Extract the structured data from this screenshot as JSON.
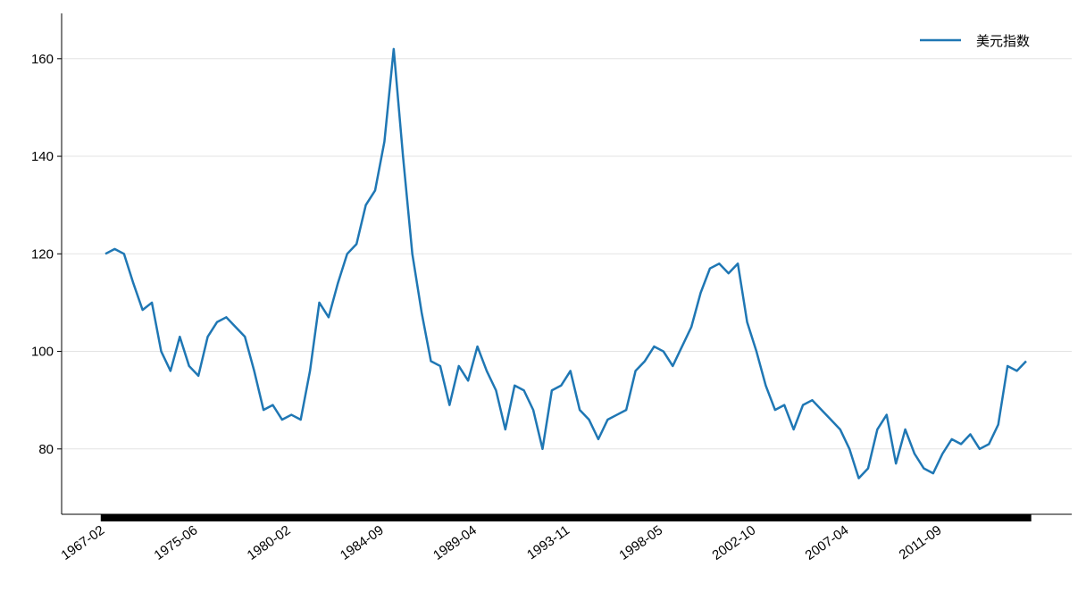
{
  "chart_data": {
    "type": "line",
    "categories": [
      "1967-02",
      null,
      null,
      null,
      null,
      null,
      null,
      null,
      null,
      null,
      "1975-06",
      null,
      null,
      null,
      null,
      null,
      null,
      null,
      null,
      null,
      "1980-02",
      null,
      null,
      null,
      null,
      null,
      null,
      null,
      null,
      null,
      "1984-09",
      null,
      null,
      null,
      null,
      null,
      null,
      null,
      null,
      null,
      "1989-04",
      null,
      null,
      null,
      null,
      null,
      null,
      null,
      null,
      null,
      "1993-11",
      null,
      null,
      null,
      null,
      null,
      null,
      null,
      null,
      null,
      "1998-05",
      null,
      null,
      null,
      null,
      null,
      null,
      null,
      null,
      null,
      "2002-10",
      null,
      null,
      null,
      null,
      null,
      null,
      null,
      null,
      null,
      "2007-04",
      null,
      null,
      null,
      null,
      null,
      null,
      null,
      null,
      null,
      "2011-09",
      null,
      null,
      null,
      null,
      null,
      null,
      null,
      null,
      null
    ],
    "series": [
      {
        "name": "美元指数",
        "color": "#1f77b4",
        "values": [
          120,
          121,
          120,
          114,
          108.5,
          110,
          100,
          96,
          103,
          97,
          95,
          103,
          106,
          107,
          105,
          103,
          96,
          88,
          89,
          86,
          87,
          86,
          96,
          110,
          107,
          114,
          120,
          122,
          130,
          133,
          143,
          162,
          140,
          120,
          108,
          98,
          97,
          89,
          97,
          94,
          101,
          96,
          92,
          84,
          93,
          92,
          88,
          80,
          92,
          93,
          96,
          88,
          86,
          82,
          86,
          87,
          88,
          96,
          98,
          101,
          100,
          97,
          101,
          105,
          112,
          117,
          118,
          116,
          118,
          106,
          100,
          93,
          88,
          89,
          84,
          89,
          90,
          88,
          86,
          84,
          80,
          74,
          76,
          84,
          87,
          77,
          84,
          79,
          76,
          75,
          79,
          82,
          81,
          83,
          80,
          81,
          85,
          97,
          96,
          98
        ]
      }
    ],
    "ylim": [
      66.6,
      169.3
    ],
    "yticks": [
      80,
      100,
      120,
      140,
      160
    ],
    "grid": true,
    "legend": "upper right"
  }
}
